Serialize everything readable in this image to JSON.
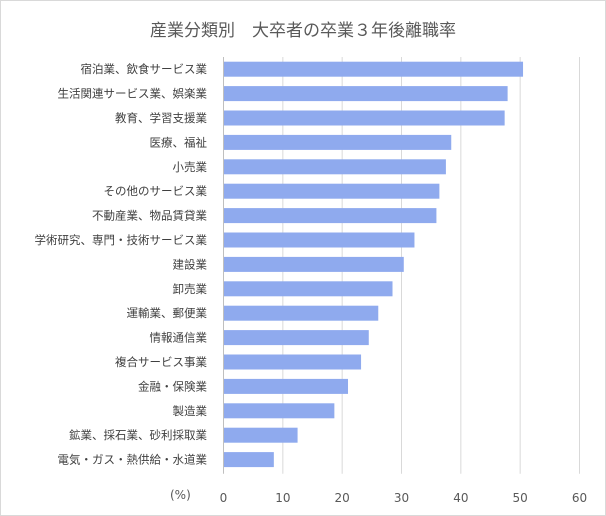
{
  "chart_data": {
    "type": "bar",
    "orientation": "horizontal",
    "title": "産業分類別　大卒者の卒業３年後離職率",
    "xlabel": "(%)",
    "ylabel": "",
    "xlim": [
      0,
      60
    ],
    "xticks": [
      0,
      10,
      20,
      30,
      40,
      50,
      60
    ],
    "grid": true,
    "legend": "none",
    "bar_color": "#8faaee",
    "categories": [
      "宿泊業、飲食サービス業",
      "生活関連サービス業、娯楽業",
      "教育、学習支援業",
      "医療、福祉",
      "小売業",
      "その他のサービス業",
      "不動産業、物品賃貸業",
      "学術研究、専門・技術サービス業",
      "建設業",
      "卸売業",
      "運輸業、郵便業",
      "情報通信業",
      "複合サービス事業",
      "金融・保険業",
      "製造業",
      "鉱業、採石業、砂利採取業",
      "電気・ガス・熱供給・水道業"
    ],
    "values": [
      50.4,
      47.8,
      47.3,
      38.3,
      37.4,
      36.3,
      35.8,
      32.1,
      30.3,
      28.4,
      26.0,
      24.4,
      23.1,
      20.9,
      18.6,
      12.4,
      8.4
    ]
  }
}
